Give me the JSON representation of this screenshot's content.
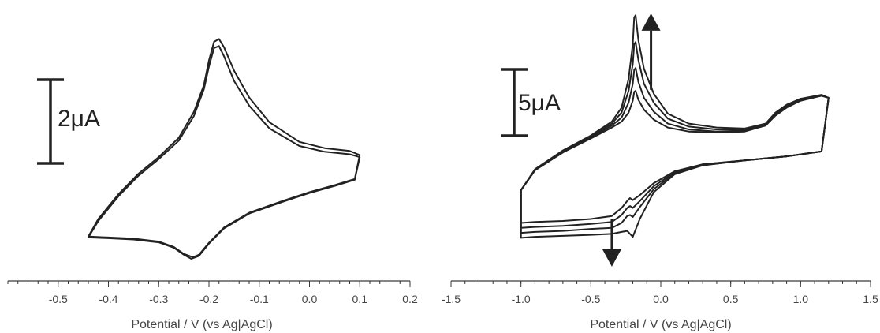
{
  "chart_data": [
    {
      "type": "line",
      "title": "",
      "xlabel": "Potential / V (vs Ag|AgCl)",
      "ylabel": "",
      "xlim": [
        -0.6,
        0.2
      ],
      "x_ticks": [
        "-0.5",
        "-0.4",
        "-0.3",
        "-0.2",
        "-0.1",
        "0.0",
        "0.1",
        "0.2"
      ],
      "scale_bar_label": "2μA",
      "scale_bar_value_uA": 2,
      "ylim_uA": [
        -2.35,
        3.4
      ],
      "series": [
        {
          "x": [
            -0.44,
            -0.4,
            -0.35,
            -0.3,
            -0.27,
            -0.25,
            -0.235,
            -0.22,
            -0.2,
            -0.17,
            -0.12,
            -0.05,
            0.0,
            0.05,
            0.09,
            0.1,
            0.08,
            0.03,
            -0.02,
            -0.08,
            -0.12,
            -0.15,
            -0.17,
            -0.18,
            -0.19,
            -0.2,
            -0.21,
            -0.23,
            -0.26,
            -0.3,
            -0.34,
            -0.38,
            -0.42,
            -0.44
          ],
          "y": [
            -1.6,
            -1.62,
            -1.65,
            -1.72,
            -1.85,
            -2.02,
            -2.12,
            -2.05,
            -1.75,
            -1.38,
            -1.02,
            -0.72,
            -0.52,
            -0.35,
            -0.2,
            0.35,
            0.42,
            0.48,
            0.62,
            1.05,
            1.6,
            2.2,
            2.8,
            3.05,
            3.0,
            2.55,
            2.0,
            1.35,
            0.75,
            0.3,
            -0.1,
            -0.6,
            -1.2,
            -1.6
          ]
        },
        {
          "x": [
            -0.44,
            -0.4,
            -0.35,
            -0.3,
            -0.27,
            -0.25,
            -0.232,
            -0.22,
            -0.2,
            -0.17,
            -0.12,
            -0.05,
            0.0,
            0.05,
            0.09,
            0.1,
            0.08,
            0.03,
            -0.02,
            -0.08,
            -0.12,
            -0.15,
            -0.17,
            -0.18,
            -0.19,
            -0.2,
            -0.21,
            -0.23,
            -0.26,
            -0.3,
            -0.34,
            -0.38,
            -0.42,
            -0.44
          ],
          "y": [
            -1.58,
            -1.6,
            -1.63,
            -1.7,
            -1.83,
            -2.0,
            -2.08,
            -2.02,
            -1.73,
            -1.36,
            -1.0,
            -0.7,
            -0.5,
            -0.33,
            -0.18,
            0.4,
            0.5,
            0.57,
            0.72,
            1.2,
            1.8,
            2.45,
            3.02,
            3.22,
            3.15,
            2.7,
            2.1,
            1.45,
            0.82,
            0.35,
            -0.05,
            -0.55,
            -1.15,
            -1.58
          ]
        }
      ]
    },
    {
      "type": "line",
      "title": "",
      "xlabel": "Potential / V (vs Ag|AgCl)",
      "ylabel": "",
      "xlim": [
        -1.5,
        1.5
      ],
      "x_ticks": [
        "-1.5",
        "-1.0",
        "-0.5",
        "0.0",
        "0.5",
        "1.0",
        "1.5"
      ],
      "scale_bar_label": "5μA",
      "scale_bar_value_uA": 5,
      "ylim_uA": [
        -14,
        13
      ],
      "series": [
        {
          "x": [
            -1.0,
            -0.9,
            -0.7,
            -0.5,
            -0.35,
            -0.28,
            -0.24,
            -0.22,
            -0.2,
            -0.15,
            -0.05,
            0.1,
            0.3,
            0.6,
            0.9,
            1.15,
            1.2,
            1.15,
            1.0,
            0.9,
            0.82,
            0.75,
            0.6,
            0.4,
            0.2,
            0.05,
            -0.05,
            -0.12,
            -0.16,
            -0.18,
            -0.19,
            -0.2,
            -0.23,
            -0.28,
            -0.35,
            -0.5,
            -0.7,
            -0.9,
            -1.0,
            -1.0
          ],
          "y": [
            -8.8,
            -8.7,
            -8.6,
            -8.4,
            -8.1,
            -7.3,
            -6.6,
            -6.3,
            -6.5,
            -6.0,
            -4.8,
            -3.6,
            -2.9,
            -2.5,
            -2.1,
            -1.6,
            3.8,
            4.0,
            3.5,
            2.8,
            2.0,
            1.0,
            0.4,
            0.3,
            0.4,
            0.8,
            1.6,
            2.6,
            3.6,
            4.5,
            4.4,
            3.5,
            2.3,
            1.4,
            0.8,
            -0.3,
            -1.7,
            -3.5,
            -5.5,
            -8.8
          ]
        },
        {
          "x": [
            -1.0,
            -0.9,
            -0.7,
            -0.5,
            -0.35,
            -0.28,
            -0.24,
            -0.22,
            -0.2,
            -0.15,
            -0.05,
            0.1,
            0.3,
            0.6,
            0.9,
            1.15,
            1.2,
            1.15,
            1.0,
            0.9,
            0.82,
            0.75,
            0.6,
            0.4,
            0.2,
            0.05,
            -0.05,
            -0.12,
            -0.16,
            -0.18,
            -0.19,
            -0.2,
            -0.23,
            -0.28,
            -0.35,
            -0.5,
            -0.7,
            -0.9,
            -1.0,
            -1.0
          ],
          "y": [
            -9.3,
            -9.2,
            -9.1,
            -8.9,
            -8.7,
            -8.0,
            -7.3,
            -7.1,
            -7.3,
            -6.6,
            -5.1,
            -3.7,
            -2.9,
            -2.5,
            -2.1,
            -1.6,
            3.8,
            4.0,
            3.5,
            2.9,
            2.1,
            1.0,
            0.5,
            0.4,
            0.6,
            1.2,
            2.4,
            3.8,
            5.4,
            6.8,
            6.6,
            5.2,
            3.3,
            1.8,
            1.0,
            -0.2,
            -1.7,
            -3.5,
            -5.5,
            -9.3
          ]
        },
        {
          "x": [
            -1.0,
            -0.9,
            -0.7,
            -0.5,
            -0.35,
            -0.28,
            -0.24,
            -0.22,
            -0.2,
            -0.15,
            -0.05,
            0.1,
            0.3,
            0.6,
            0.9,
            1.15,
            1.2,
            1.15,
            1.0,
            0.9,
            0.82,
            0.75,
            0.6,
            0.4,
            0.2,
            0.05,
            -0.05,
            -0.12,
            -0.16,
            -0.18,
            -0.19,
            -0.2,
            -0.23,
            -0.28,
            -0.35,
            -0.5,
            -0.7,
            -0.9,
            -1.0,
            -1.0
          ],
          "y": [
            -9.8,
            -9.7,
            -9.6,
            -9.4,
            -9.3,
            -8.8,
            -8.1,
            -8.0,
            -8.2,
            -7.2,
            -5.4,
            -3.8,
            -3.0,
            -2.5,
            -2.1,
            -1.6,
            3.8,
            4.0,
            3.6,
            3.0,
            2.2,
            1.1,
            0.6,
            0.6,
            0.9,
            1.7,
            3.3,
            5.2,
            7.6,
            9.4,
            9.2,
            7.2,
            4.5,
            2.3,
            1.2,
            -0.1,
            -1.6,
            -3.5,
            -5.5,
            -9.8
          ]
        },
        {
          "x": [
            -1.0,
            -0.9,
            -0.7,
            -0.5,
            -0.35,
            -0.28,
            -0.24,
            -0.22,
            -0.2,
            -0.15,
            -0.05,
            0.1,
            0.3,
            0.6,
            0.9,
            1.15,
            1.2,
            1.15,
            1.0,
            0.9,
            0.82,
            0.75,
            0.6,
            0.4,
            0.2,
            0.05,
            -0.05,
            -0.12,
            -0.16,
            -0.18,
            -0.19,
            -0.2,
            -0.23,
            -0.28,
            -0.35,
            -0.5,
            -0.7,
            -0.9,
            -1.0,
            -1.0
          ],
          "y": [
            -10.3,
            -10.2,
            -10.1,
            -10.0,
            -9.9,
            -9.7,
            -9.6,
            -9.9,
            -10.2,
            -8.4,
            -5.7,
            -3.9,
            -3.0,
            -2.5,
            -2.1,
            -1.6,
            3.8,
            4.1,
            3.7,
            3.1,
            2.3,
            1.2,
            0.7,
            0.8,
            1.2,
            2.2,
            4.2,
            6.7,
            9.6,
            12.1,
            11.9,
            9.2,
            5.7,
            2.8,
            1.4,
            0.0,
            -1.5,
            -3.4,
            -5.5,
            -10.3
          ]
        }
      ],
      "arrows": [
        {
          "direction": "up",
          "x": -0.07,
          "y_from": 4.6,
          "y_to": 12.3
        },
        {
          "direction": "down",
          "x": -0.35,
          "y_from": -8.4,
          "y_to": -13.2
        }
      ]
    }
  ]
}
